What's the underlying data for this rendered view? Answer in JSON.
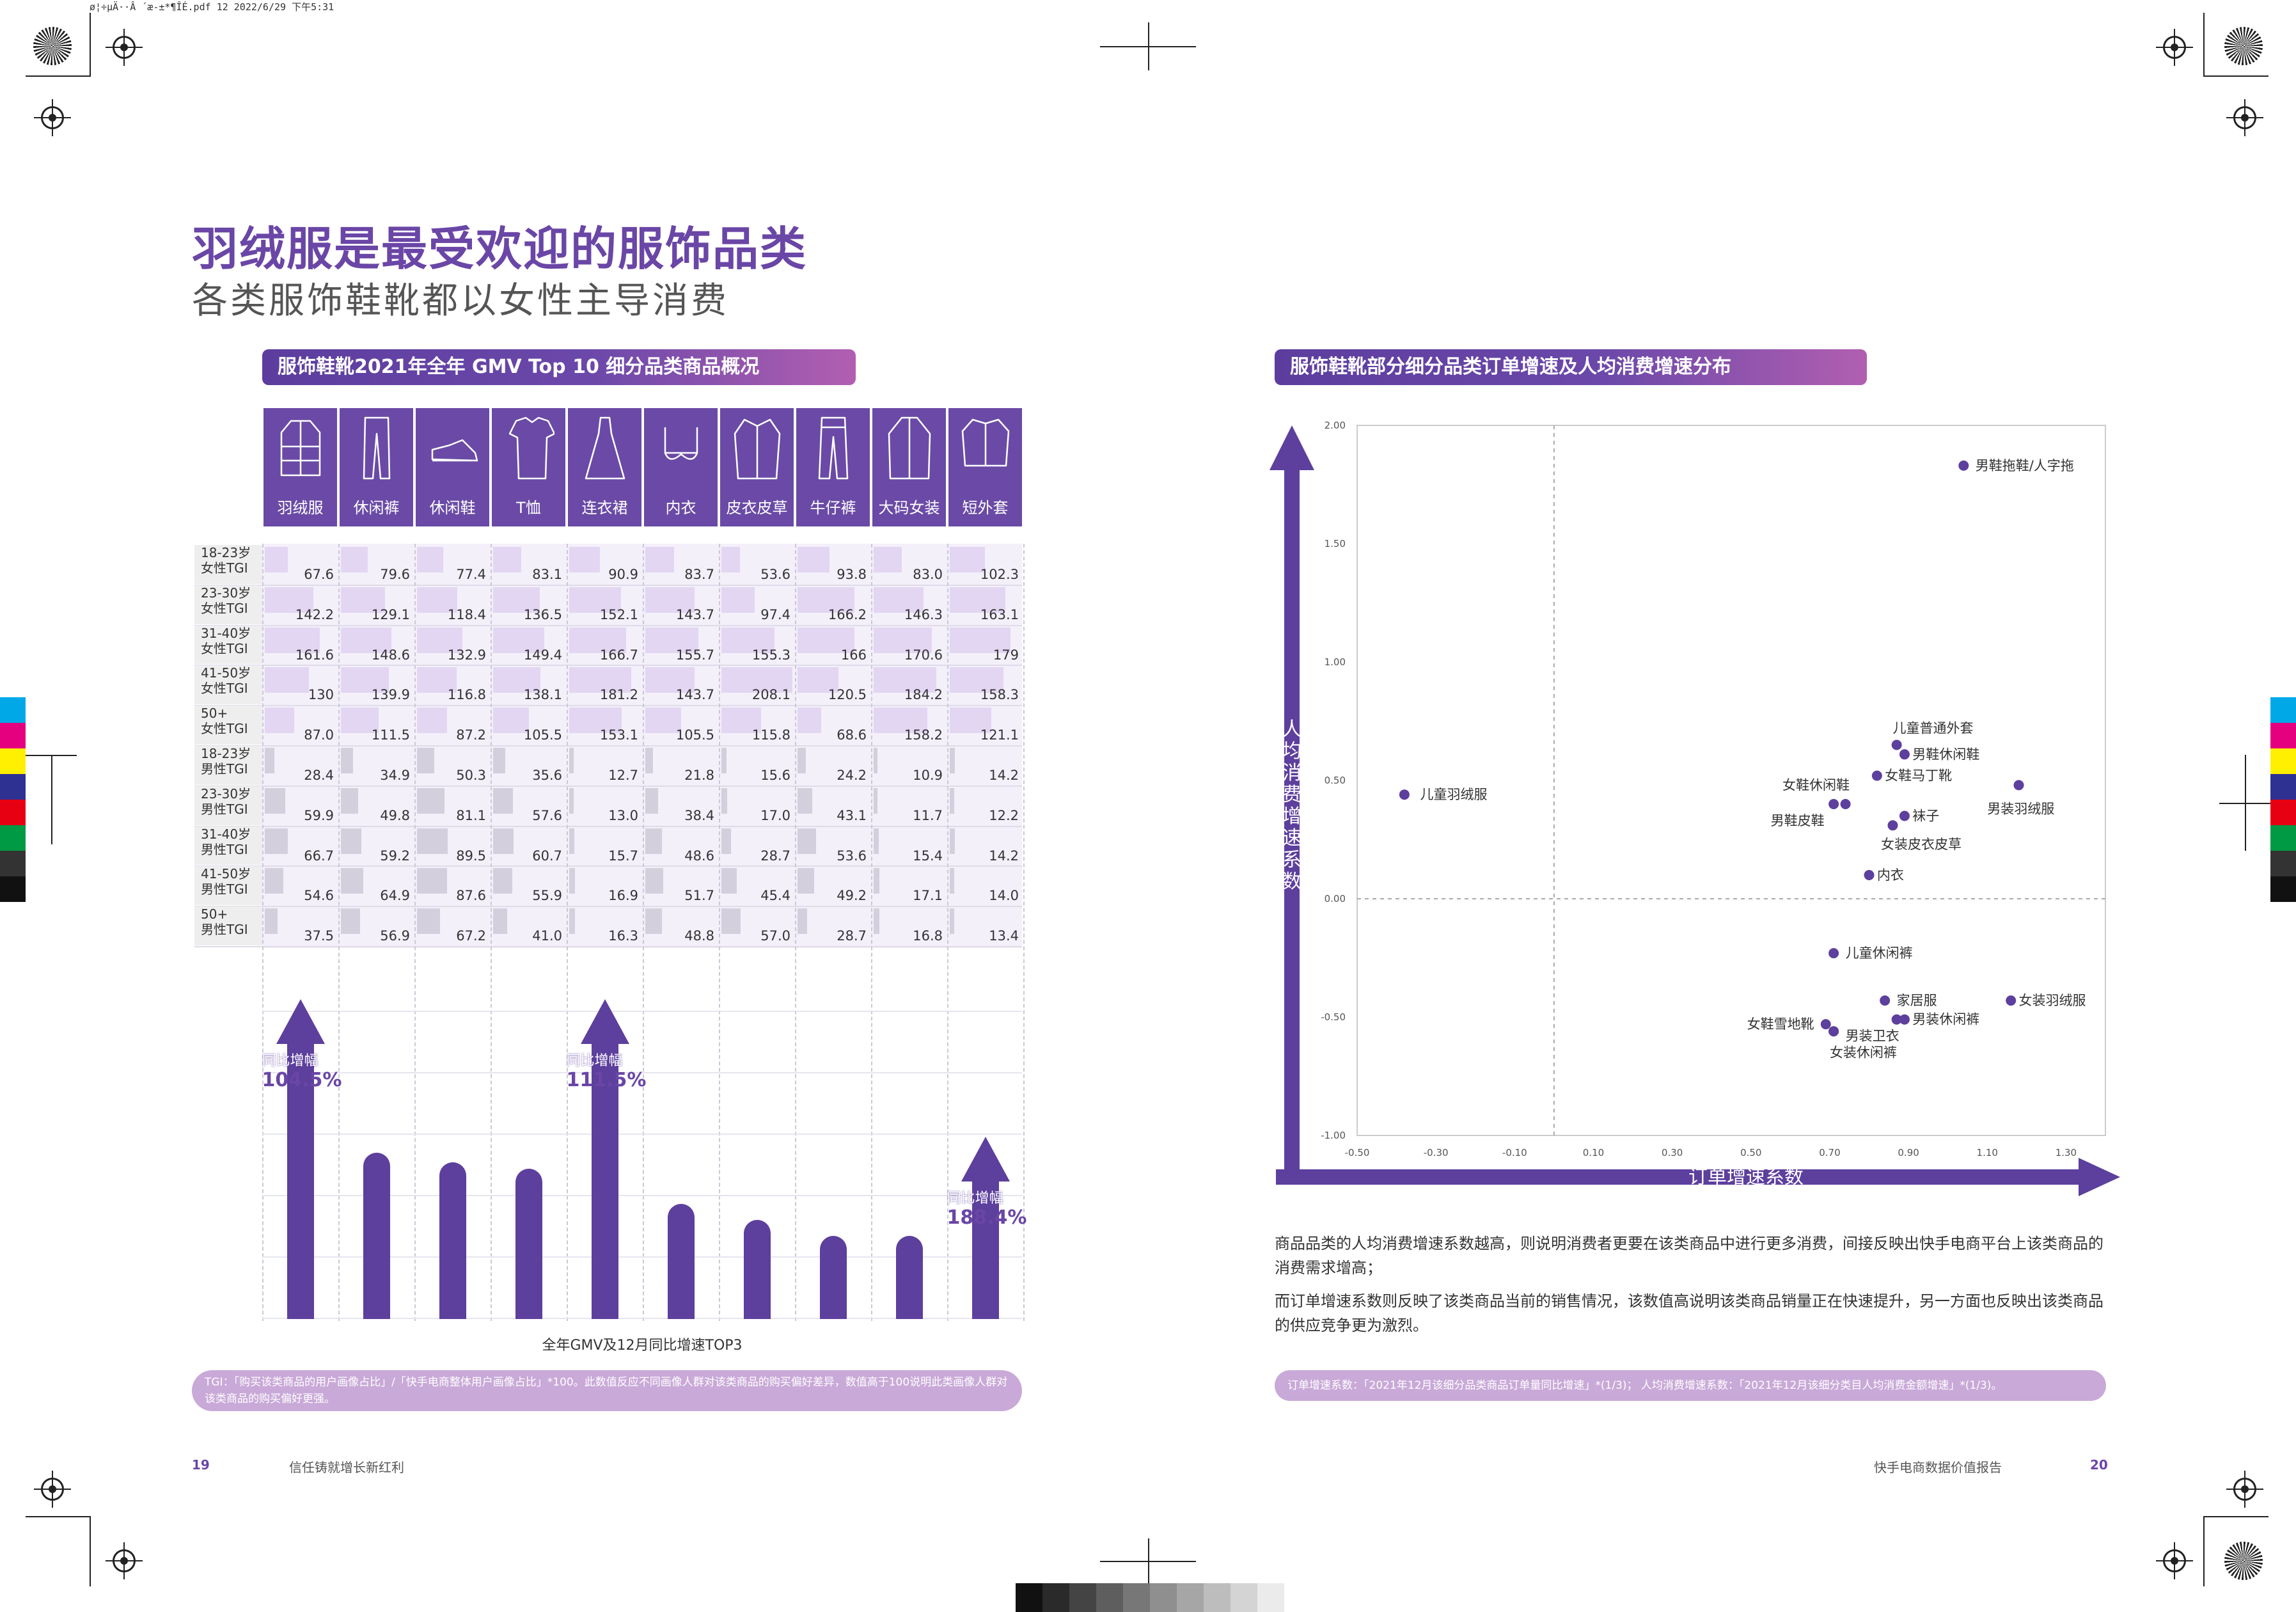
{
  "print_header": "ø¦÷µÄ··Â ´æ-±*¶ÎÉ.pdf   12   2022/6/29   下午5:31",
  "title": "羽绒服是最受欢迎的服饰品类",
  "subtitle": "各类服饰鞋靴都以女性主导消费",
  "left_banner": "服饰鞋靴2021年全年 GMV Top 10 细分品类商品概况",
  "right_banner": "服饰鞋靴部分细分品类订单增速及人均消费增速分布",
  "categories": [
    "羽绒服",
    "休闲裤",
    "休闲鞋",
    "T恤",
    "连衣裙",
    "内衣",
    "皮衣皮草",
    "牛仔裤",
    "大码女装",
    "短外套"
  ],
  "tgi_rows": [
    {
      "label1": "18-23岁",
      "label2": "女性TGI",
      "values": [
        67.6,
        79.6,
        77.4,
        83.1,
        90.9,
        83.7,
        53.6,
        93.8,
        83.0,
        102.3
      ]
    },
    {
      "label1": "23-30岁",
      "label2": "女性TGI",
      "values": [
        142.2,
        129.1,
        118.4,
        136.5,
        152.1,
        143.7,
        97.4,
        166.2,
        146.3,
        163.1
      ]
    },
    {
      "label1": "31-40岁",
      "label2": "女性TGI",
      "values": [
        161.6,
        148.6,
        132.9,
        149.4,
        166.7,
        155.7,
        155.3,
        166.0,
        170.6,
        179.0
      ]
    },
    {
      "label1": "41-50岁",
      "label2": "女性TGI",
      "values": [
        130,
        139.9,
        116.8,
        138.1,
        181.2,
        143.7,
        208.1,
        120.5,
        184.2,
        158.3
      ]
    },
    {
      "label1": "50+",
      "label2": "女性TGI",
      "values": [
        87.0,
        111.5,
        87.2,
        105.5,
        153.1,
        105.5,
        115.8,
        68.6,
        158.2,
        121.1
      ]
    },
    {
      "label1": "18-23岁",
      "label2": "男性TGI",
      "values": [
        28.4,
        34.9,
        50.3,
        35.6,
        12.7,
        21.8,
        15.6,
        24.2,
        10.9,
        14.2
      ]
    },
    {
      "label1": "23-30岁",
      "label2": "男性TGI",
      "values": [
        59.9,
        49.8,
        81.1,
        57.6,
        13.0,
        38.4,
        17.0,
        43.1,
        11.7,
        12.2
      ]
    },
    {
      "label1": "31-40岁",
      "label2": "男性TGI",
      "values": [
        66.7,
        59.2,
        89.5,
        60.7,
        15.7,
        48.6,
        28.7,
        53.6,
        15.4,
        14.2
      ]
    },
    {
      "label1": "41-50岁",
      "label2": "男性TGI",
      "values": [
        54.6,
        64.9,
        87.6,
        55.9,
        16.9,
        51.7,
        45.4,
        49.2,
        17.1,
        14.0
      ]
    },
    {
      "label1": "50+",
      "label2": "男性TGI",
      "values": [
        37.5,
        56.9,
        67.2,
        41.0,
        16.3,
        48.8,
        57.0,
        28.7,
        16.8,
        13.4
      ]
    }
  ],
  "gmv_chart": {
    "caption": "全年GMV及12月同比增速TOP3",
    "relative_gmv": [
      1.0,
      0.52,
      0.49,
      0.47,
      1.0,
      0.36,
      0.31,
      0.26,
      0.26,
      0.57
    ],
    "top3": [
      {
        "index": 0,
        "label": "同比增幅",
        "value": "104.5%"
      },
      {
        "index": 4,
        "label": "同比增幅",
        "value": "111.5%"
      },
      {
        "index": 9,
        "label": "同比增幅",
        "value": "188.4%"
      }
    ]
  },
  "left_note": "TGI：「购买该类商品的用户画像占比」/「快手电商整体用户画像占比」*100。此数值反应不同画像人群对该类商品的购买偏好差异，数值高于100说明此类画像人群对该类商品的购买偏好更强。",
  "chart_data": {
    "type": "scatter",
    "xlabel": "订单增速系数",
    "ylabel": "人均消费增速系数",
    "xlim": [
      -0.5,
      1.4
    ],
    "ylim": [
      -1.0,
      2.0
    ],
    "xticks": [
      "-0.50",
      "-0.30",
      "-0.10",
      "0.10",
      "0.30",
      "0.50",
      "0.70",
      "0.90",
      "1.10",
      "1.30"
    ],
    "yticks": [
      "2.00",
      "1.50",
      "1.00",
      "0.50",
      "0.00",
      "-0.50",
      "-1.00"
    ],
    "points": [
      {
        "name": "男鞋拖鞋/人字拖",
        "x": 1.04,
        "y": 1.83
      },
      {
        "name": "儿童羽绒服",
        "x": -0.38,
        "y": 0.44
      },
      {
        "name": "儿童普通外套",
        "x": 0.87,
        "y": 0.65
      },
      {
        "name": "男鞋休闲鞋",
        "x": 0.89,
        "y": 0.61
      },
      {
        "name": "女鞋马丁靴",
        "x": 0.82,
        "y": 0.52
      },
      {
        "name": "女鞋休闲鞋",
        "x": 0.74,
        "y": 0.4
      },
      {
        "name": "男鞋皮鞋",
        "x": 0.71,
        "y": 0.4
      },
      {
        "name": "袜子",
        "x": 0.89,
        "y": 0.35
      },
      {
        "name": "女装皮衣皮草",
        "x": 0.86,
        "y": 0.31
      },
      {
        "name": "男装羽绒服",
        "x": 1.18,
        "y": 0.48
      },
      {
        "name": "内衣",
        "x": 0.8,
        "y": 0.1
      },
      {
        "name": "儿童休闲裤",
        "x": 0.71,
        "y": -0.23
      },
      {
        "name": "家居服",
        "x": 0.84,
        "y": -0.43
      },
      {
        "name": "女装羽绒服",
        "x": 1.16,
        "y": -0.43
      },
      {
        "name": "男装休闲裤",
        "x": 0.89,
        "y": -0.51
      },
      {
        "name": "男装休闲裤点2",
        "x": 0.87,
        "y": -0.51
      },
      {
        "name": "女鞋雪地靴",
        "x": 0.69,
        "y": -0.53
      },
      {
        "name": "男装卫衣",
        "x": 0.71,
        "y": -0.56
      },
      {
        "name": "女装休闲裤",
        "x": 0.71,
        "y": -0.56
      }
    ],
    "labels": [
      {
        "text": "男鞋拖鞋/人字拖",
        "x": 1.07,
        "y": 1.83,
        "anchor": "start"
      },
      {
        "text": "儿童羽绒服",
        "x": -0.34,
        "y": 0.44,
        "anchor": "start"
      },
      {
        "text": "儿童普通外套",
        "x": 0.86,
        "y": 0.72,
        "anchor": "start"
      },
      {
        "text": "男鞋休闲鞋",
        "x": 0.91,
        "y": 0.61,
        "anchor": "start"
      },
      {
        "text": "女鞋马丁靴",
        "x": 0.84,
        "y": 0.52,
        "anchor": "start"
      },
      {
        "text": "女鞋休闲鞋",
        "x": 0.58,
        "y": 0.48,
        "anchor": "start"
      },
      {
        "text": "男鞋皮鞋",
        "x": 0.55,
        "y": 0.33,
        "anchor": "start"
      },
      {
        "text": "袜子",
        "x": 0.91,
        "y": 0.35,
        "anchor": "start"
      },
      {
        "text": "女装皮衣皮草",
        "x": 0.83,
        "y": 0.23,
        "anchor": "start"
      },
      {
        "text": "男装羽绒服",
        "x": 1.1,
        "y": 0.38,
        "anchor": "start"
      },
      {
        "text": "内衣",
        "x": 0.82,
        "y": 0.1,
        "anchor": "start"
      },
      {
        "text": "儿童休闲裤",
        "x": 0.74,
        "y": -0.23,
        "anchor": "start"
      },
      {
        "text": "家居服",
        "x": 0.87,
        "y": -0.43,
        "anchor": "start"
      },
      {
        "text": "女装羽绒服",
        "x": 1.18,
        "y": -0.43,
        "anchor": "start"
      },
      {
        "text": "男装休闲裤",
        "x": 0.91,
        "y": -0.51,
        "anchor": "start"
      },
      {
        "text": "女鞋雪地靴",
        "x": 0.49,
        "y": -0.53,
        "anchor": "start"
      },
      {
        "text": "男装卫衣",
        "x": 0.74,
        "y": -0.58,
        "anchor": "start"
      },
      {
        "text": "女装休闲裤",
        "x": 0.7,
        "y": -0.65,
        "anchor": "start"
      }
    ],
    "dashed_x": 0.0,
    "dashed_y": 0.0,
    "grid": false
  },
  "right_paragraphs": [
    "商品品类的人均消费增速系数越高，则说明消费者更要在该类商品中进行更多消费，间接反映出快手电商平台上该类商品的消费需求增高；",
    "而订单增速系数则反映了该类商品当前的销售情况，该数值高说明该类商品销量正在快速提升，另一方面也反映出该类商品的供应竞争更为激烈。"
  ],
  "right_note": "订单增速系数：「2021年12月该细分品类商品订单量同比增速」*(1/3)；          人均消费增速系数：「2021年12月该细分类目人均消费金额增速」*(1/3)。",
  "footer": {
    "left_page": "19",
    "left_text": "信任铸就增长新红利",
    "right_text": "快手电商数据价值报告",
    "right_page": "20"
  },
  "colors": {
    "accent": "#6a46a6",
    "bar": "#5d3f9d",
    "female_bar": "#e3d6f2",
    "male_bar": "#d4cfdc"
  }
}
